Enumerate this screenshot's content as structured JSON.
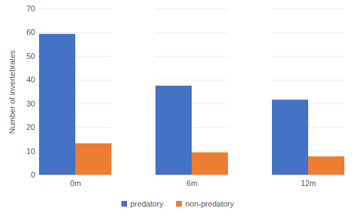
{
  "chart_data": {
    "type": "bar",
    "categories": [
      "0m",
      "6m",
      "12m"
    ],
    "series": [
      {
        "name": "predatory",
        "color": "#4472c4",
        "values": [
          59.3,
          37.5,
          31.6
        ]
      },
      {
        "name": "non-predatory",
        "color": "#ed7d31",
        "values": [
          13.2,
          9.4,
          7.7
        ]
      }
    ],
    "y_label": "Number of invertebrates",
    "ylim": [
      0,
      70
    ],
    "yticks": [
      0,
      10,
      20,
      30,
      40,
      50,
      60,
      70
    ],
    "grid": true,
    "legend": "bottom"
  }
}
